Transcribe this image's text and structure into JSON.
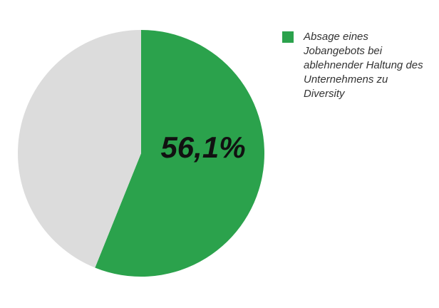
{
  "chart_data": {
    "type": "pie",
    "categories": [
      "Absage eines Jobangebots bei ablehnender Haltung des Unternehmens zu Diversity",
      null
    ],
    "values": [
      56.1,
      43.9
    ],
    "value_labels": [
      "56,1%",
      null
    ],
    "colors": [
      "#2ba24c",
      "#dcdcdc"
    ]
  }
}
